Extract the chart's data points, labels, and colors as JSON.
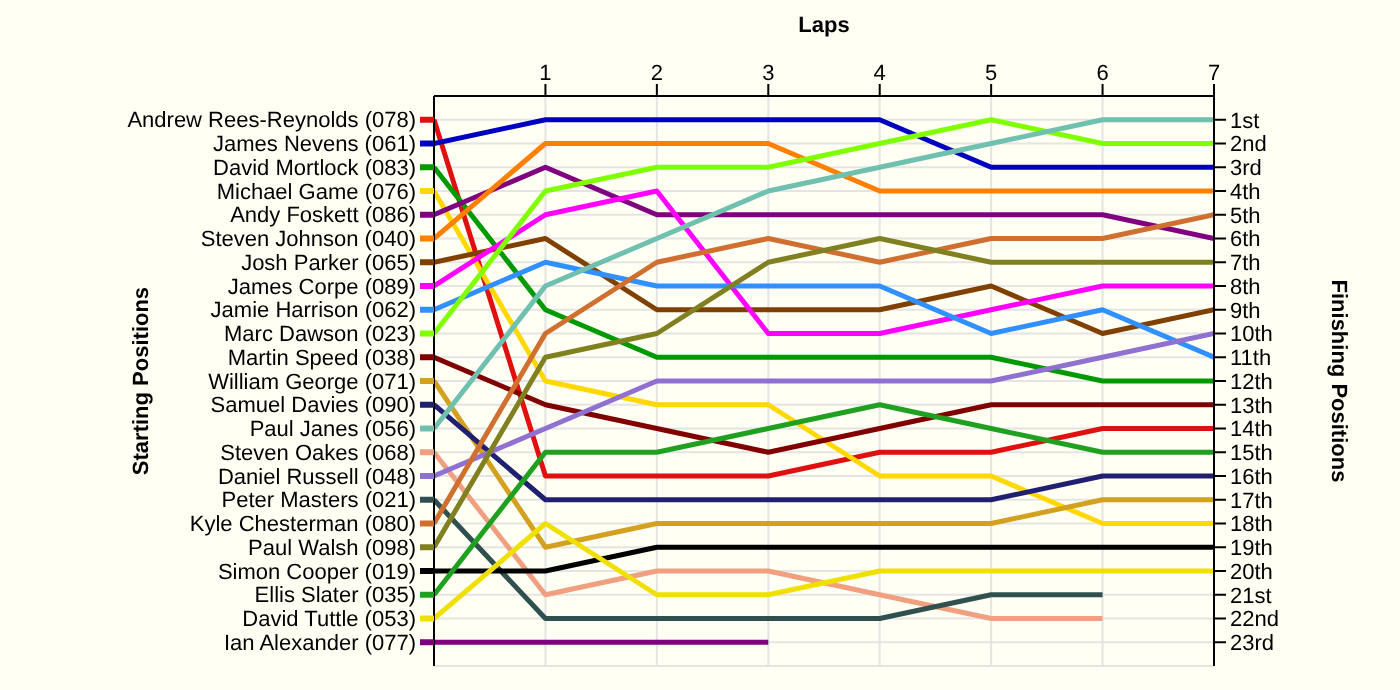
{
  "chart_data": {
    "type": "line",
    "xlabel": "Laps",
    "legend_title": "Starting Positions",
    "ylabel": "Finishing Positions",
    "x": [
      0,
      1,
      2,
      3,
      4,
      5,
      6,
      7
    ],
    "xlim": [
      0,
      7
    ],
    "xticks": [
      1,
      2,
      3,
      4,
      5,
      6,
      7
    ],
    "ylim": [
      24,
      0
    ],
    "grid": true,
    "legend": "left",
    "marker": "none",
    "line_style": "solid",
    "yticks": [
      {
        "value": 1,
        "label": "1st"
      },
      {
        "value": 2,
        "label": "2nd"
      },
      {
        "value": 3,
        "label": "3rd"
      },
      {
        "value": 4,
        "label": "4th"
      },
      {
        "value": 5,
        "label": "5th"
      },
      {
        "value": 6,
        "label": "6th"
      },
      {
        "value": 7,
        "label": "7th"
      },
      {
        "value": 8,
        "label": "8th"
      },
      {
        "value": 9,
        "label": "9th"
      },
      {
        "value": 10,
        "label": "10th"
      },
      {
        "value": 11,
        "label": "11th"
      },
      {
        "value": 12,
        "label": "12th"
      },
      {
        "value": 13,
        "label": "13th"
      },
      {
        "value": 14,
        "label": "14th"
      },
      {
        "value": 15,
        "label": "15th"
      },
      {
        "value": 16,
        "label": "16th"
      },
      {
        "value": 17,
        "label": "17th"
      },
      {
        "value": 18,
        "label": "18th"
      },
      {
        "value": 19,
        "label": "19th"
      },
      {
        "value": 20,
        "label": "20th"
      },
      {
        "value": 21,
        "label": "21st"
      },
      {
        "value": 22,
        "label": "22nd"
      },
      {
        "value": 23,
        "label": "23rd"
      }
    ],
    "series": [
      {
        "name": "Andrew Rees-Reynolds (078)",
        "color": "#e01010",
        "values": [
          1,
          16,
          16,
          16,
          15,
          15,
          14,
          14
        ]
      },
      {
        "name": "James Nevens (061)",
        "color": "#0000c0",
        "values": [
          2,
          1,
          1,
          1,
          1,
          3,
          3,
          3
        ]
      },
      {
        "name": "David Mortlock (083)",
        "color": "#009900",
        "values": [
          3,
          9,
          11,
          11,
          11,
          11,
          12,
          12
        ]
      },
      {
        "name": "Michael Game (076)",
        "color": "#ffd800",
        "values": [
          4,
          12,
          13,
          13,
          16,
          16,
          18,
          18
        ]
      },
      {
        "name": "Andy Foskett (086)",
        "color": "#800080",
        "values": [
          5,
          3,
          5,
          5,
          5,
          5,
          5,
          6
        ]
      },
      {
        "name": "Steven Johnson (040)",
        "color": "#ff8000",
        "values": [
          6,
          2,
          2,
          2,
          4,
          4,
          4,
          4
        ]
      },
      {
        "name": "Josh Parker (065)",
        "color": "#804000",
        "values": [
          7,
          6,
          9,
          9,
          9,
          8,
          10,
          9
        ]
      },
      {
        "name": "James Corpe (089)",
        "color": "#ff00ff",
        "values": [
          8,
          5,
          4,
          10,
          10,
          9,
          8,
          8
        ]
      },
      {
        "name": "Jamie Harrison (062)",
        "color": "#3090ff",
        "values": [
          9,
          7,
          8,
          8,
          8,
          10,
          9,
          11
        ]
      },
      {
        "name": "Marc Dawson (023)",
        "color": "#80ff00",
        "values": [
          10,
          4,
          3,
          3,
          2,
          1,
          2,
          2
        ]
      },
      {
        "name": "Martin Speed (038)",
        "color": "#800000",
        "values": [
          11,
          13,
          14,
          15,
          14,
          13,
          13,
          13
        ]
      },
      {
        "name": "William George (071)",
        "color": "#d4a020",
        "values": [
          12,
          19,
          18,
          18,
          18,
          18,
          17,
          17
        ]
      },
      {
        "name": "Samuel Davies (090)",
        "color": "#202070",
        "values": [
          13,
          17,
          17,
          17,
          17,
          17,
          16,
          16
        ]
      },
      {
        "name": "Paul Janes (056)",
        "color": "#70c0b0",
        "values": [
          14,
          8,
          6,
          4,
          3,
          2,
          1,
          1
        ]
      },
      {
        "name": "Steven Oakes (068)",
        "color": "#f0a080",
        "values": [
          15,
          21,
          20,
          20,
          21,
          22,
          22,
          null
        ]
      },
      {
        "name": "Daniel Russell (048)",
        "color": "#9070d0",
        "values": [
          16,
          14,
          12,
          12,
          12,
          12,
          11,
          10
        ]
      },
      {
        "name": "Peter Masters (021)",
        "color": "#305050",
        "values": [
          17,
          22,
          22,
          22,
          22,
          21,
          21,
          null
        ]
      },
      {
        "name": "Kyle Chesterman (080)",
        "color": "#d07030",
        "values": [
          18,
          10,
          7,
          6,
          7,
          6,
          6,
          5
        ]
      },
      {
        "name": "Paul Walsh (098)",
        "color": "#808020",
        "values": [
          19,
          11,
          10,
          7,
          6,
          7,
          7,
          7
        ]
      },
      {
        "name": "Simon Cooper (019)",
        "color": "#000000",
        "values": [
          20,
          20,
          19,
          19,
          19,
          19,
          19,
          19
        ]
      },
      {
        "name": "Ellis Slater (035)",
        "color": "#20a020",
        "values": [
          21,
          15,
          15,
          14,
          13,
          14,
          15,
          15
        ]
      },
      {
        "name": "David Tuttle (053)",
        "color": "#f0e000",
        "values": [
          22,
          18,
          21,
          21,
          20,
          20,
          20,
          20
        ]
      },
      {
        "name": "Ian Alexander (077)",
        "color": "#7f007f",
        "values": [
          23,
          23,
          23,
          23,
          null,
          null,
          null,
          null
        ]
      }
    ]
  }
}
